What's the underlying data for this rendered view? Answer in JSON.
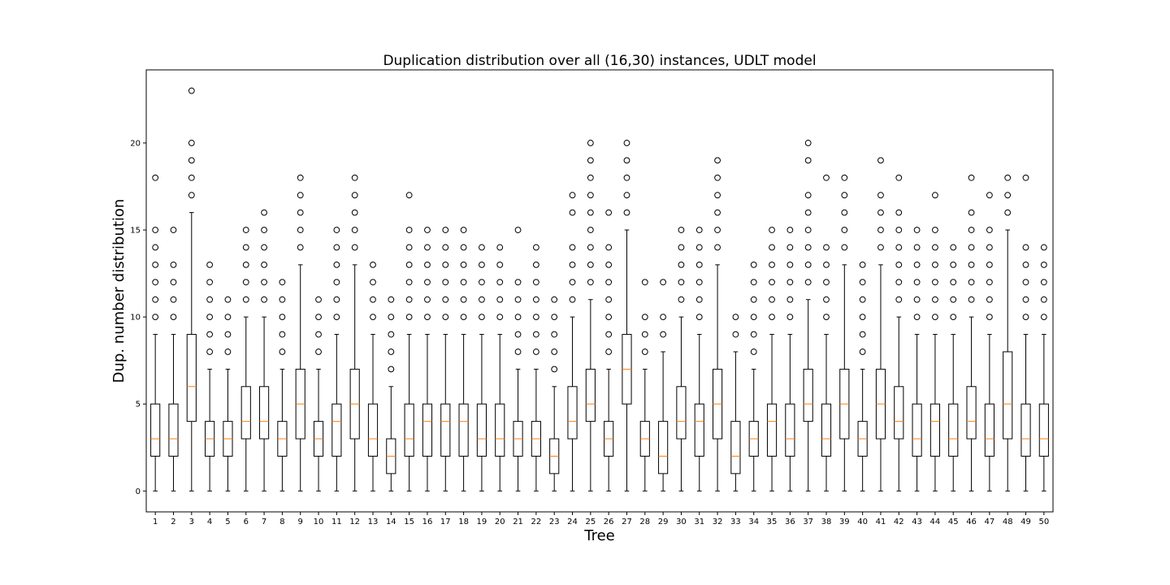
{
  "chart_data": {
    "type": "box",
    "title": "Duplication distribution over all (16,30) instances, UDLT model",
    "xlabel": "Tree",
    "ylabel": "Dup. number distribution",
    "ylim": [
      -1.2,
      24.2
    ],
    "yticks": [
      0,
      5,
      10,
      15,
      20
    ],
    "grid": false,
    "colors": {
      "box": "#000000",
      "median": "#ff7f0e",
      "flier": "#000000"
    },
    "categories": [
      "1",
      "2",
      "3",
      "4",
      "5",
      "6",
      "7",
      "8",
      "9",
      "10",
      "11",
      "12",
      "13",
      "14",
      "15",
      "16",
      "17",
      "18",
      "19",
      "20",
      "21",
      "22",
      "23",
      "24",
      "25",
      "26",
      "27",
      "28",
      "29",
      "30",
      "31",
      "32",
      "33",
      "34",
      "35",
      "36",
      "37",
      "38",
      "39",
      "40",
      "41",
      "42",
      "43",
      "44",
      "45",
      "46",
      "47",
      "48",
      "49",
      "50"
    ],
    "boxes": [
      {
        "whislo": 0,
        "q1": 2,
        "med": 3,
        "q3": 5,
        "whishi": 9,
        "fliers": [
          10,
          11,
          12,
          13,
          14,
          15,
          18
        ]
      },
      {
        "whislo": 0,
        "q1": 2,
        "med": 3,
        "q3": 5,
        "whishi": 9,
        "fliers": [
          10,
          11,
          12,
          13,
          15
        ]
      },
      {
        "whislo": 0,
        "q1": 4,
        "med": 6,
        "q3": 9,
        "whishi": 16,
        "fliers": [
          17,
          18,
          19,
          20,
          23
        ]
      },
      {
        "whislo": 0,
        "q1": 2,
        "med": 3,
        "q3": 4,
        "whishi": 7,
        "fliers": [
          8,
          9,
          10,
          11,
          12,
          13
        ]
      },
      {
        "whislo": 0,
        "q1": 2,
        "med": 3,
        "q3": 4,
        "whishi": 7,
        "fliers": [
          8,
          9,
          10,
          11
        ]
      },
      {
        "whislo": 0,
        "q1": 3,
        "med": 4,
        "q3": 6,
        "whishi": 10,
        "fliers": [
          11,
          12,
          13,
          14,
          15
        ]
      },
      {
        "whislo": 0,
        "q1": 3,
        "med": 4,
        "q3": 6,
        "whishi": 10,
        "fliers": [
          11,
          12,
          13,
          14,
          15,
          16
        ]
      },
      {
        "whislo": 0,
        "q1": 2,
        "med": 3,
        "q3": 4,
        "whishi": 7,
        "fliers": [
          8,
          9,
          10,
          11,
          12
        ]
      },
      {
        "whislo": 0,
        "q1": 3,
        "med": 5,
        "q3": 7,
        "whishi": 13,
        "fliers": [
          14,
          15,
          16,
          17,
          18
        ]
      },
      {
        "whislo": 0,
        "q1": 2,
        "med": 3,
        "q3": 4,
        "whishi": 7,
        "fliers": [
          8,
          9,
          10,
          11
        ]
      },
      {
        "whislo": 0,
        "q1": 2,
        "med": 4,
        "q3": 5,
        "whishi": 9,
        "fliers": [
          10,
          11,
          12,
          13,
          14,
          15
        ]
      },
      {
        "whislo": 0,
        "q1": 3,
        "med": 5,
        "q3": 7,
        "whishi": 13,
        "fliers": [
          14,
          15,
          16,
          17,
          18
        ]
      },
      {
        "whislo": 0,
        "q1": 2,
        "med": 3,
        "q3": 5,
        "whishi": 9,
        "fliers": [
          10,
          11,
          12,
          13
        ]
      },
      {
        "whislo": 0,
        "q1": 1,
        "med": 2,
        "q3": 3,
        "whishi": 6,
        "fliers": [
          7,
          8,
          9,
          10,
          11
        ]
      },
      {
        "whislo": 0,
        "q1": 2,
        "med": 3,
        "q3": 5,
        "whishi": 9,
        "fliers": [
          10,
          11,
          12,
          13,
          14,
          15,
          17
        ]
      },
      {
        "whislo": 0,
        "q1": 2,
        "med": 4,
        "q3": 5,
        "whishi": 9,
        "fliers": [
          10,
          11,
          12,
          13,
          14,
          15
        ]
      },
      {
        "whislo": 0,
        "q1": 2,
        "med": 4,
        "q3": 5,
        "whishi": 9,
        "fliers": [
          10,
          11,
          12,
          13,
          14,
          15
        ]
      },
      {
        "whislo": 0,
        "q1": 2,
        "med": 4,
        "q3": 5,
        "whishi": 9,
        "fliers": [
          10,
          11,
          12,
          13,
          14,
          15
        ]
      },
      {
        "whislo": 0,
        "q1": 2,
        "med": 3,
        "q3": 5,
        "whishi": 9,
        "fliers": [
          10,
          11,
          12,
          13,
          14
        ]
      },
      {
        "whislo": 0,
        "q1": 2,
        "med": 3,
        "q3": 5,
        "whishi": 9,
        "fliers": [
          10,
          11,
          12,
          13,
          14
        ]
      },
      {
        "whislo": 0,
        "q1": 2,
        "med": 3,
        "q3": 4,
        "whishi": 7,
        "fliers": [
          8,
          9,
          10,
          11,
          12,
          15
        ]
      },
      {
        "whislo": 0,
        "q1": 2,
        "med": 3,
        "q3": 4,
        "whishi": 7,
        "fliers": [
          8,
          9,
          10,
          11,
          12,
          13,
          14
        ]
      },
      {
        "whislo": 0,
        "q1": 1,
        "med": 2,
        "q3": 3,
        "whishi": 6,
        "fliers": [
          7,
          8,
          9,
          10,
          11
        ]
      },
      {
        "whislo": 0,
        "q1": 3,
        "med": 4,
        "q3": 6,
        "whishi": 10,
        "fliers": [
          11,
          12,
          13,
          14,
          16,
          17
        ]
      },
      {
        "whislo": 0,
        "q1": 4,
        "med": 5,
        "q3": 7,
        "whishi": 11,
        "fliers": [
          12,
          13,
          14,
          15,
          16,
          17,
          18,
          19,
          20
        ]
      },
      {
        "whislo": 0,
        "q1": 2,
        "med": 3,
        "q3": 4,
        "whishi": 7,
        "fliers": [
          8,
          9,
          10,
          11,
          12,
          13,
          14,
          16
        ]
      },
      {
        "whislo": 0,
        "q1": 5,
        "med": 7,
        "q3": 9,
        "whishi": 15,
        "fliers": [
          16,
          17,
          18,
          19,
          20
        ]
      },
      {
        "whislo": 0,
        "q1": 2,
        "med": 3,
        "q3": 4,
        "whishi": 7,
        "fliers": [
          8,
          9,
          10,
          12
        ]
      },
      {
        "whislo": 0,
        "q1": 1,
        "med": 2,
        "q3": 4,
        "whishi": 8,
        "fliers": [
          9,
          10,
          12
        ]
      },
      {
        "whislo": 0,
        "q1": 3,
        "med": 4,
        "q3": 6,
        "whishi": 10,
        "fliers": [
          11,
          12,
          13,
          14,
          15
        ]
      },
      {
        "whislo": 0,
        "q1": 2,
        "med": 4,
        "q3": 5,
        "whishi": 9,
        "fliers": [
          10,
          11,
          12,
          13,
          14,
          15
        ]
      },
      {
        "whislo": 0,
        "q1": 3,
        "med": 5,
        "q3": 7,
        "whishi": 13,
        "fliers": [
          14,
          15,
          16,
          17,
          18,
          19
        ]
      },
      {
        "whislo": 0,
        "q1": 1,
        "med": 2,
        "q3": 4,
        "whishi": 8,
        "fliers": [
          9,
          10
        ]
      },
      {
        "whislo": 0,
        "q1": 2,
        "med": 3,
        "q3": 4,
        "whishi": 7,
        "fliers": [
          8,
          9,
          10,
          11,
          12,
          13
        ]
      },
      {
        "whislo": 0,
        "q1": 2,
        "med": 4,
        "q3": 5,
        "whishi": 9,
        "fliers": [
          10,
          11,
          12,
          13,
          14,
          15
        ]
      },
      {
        "whislo": 0,
        "q1": 2,
        "med": 3,
        "q3": 5,
        "whishi": 9,
        "fliers": [
          10,
          11,
          12,
          13,
          14,
          15
        ]
      },
      {
        "whislo": 0,
        "q1": 4,
        "med": 5,
        "q3": 7,
        "whishi": 11,
        "fliers": [
          12,
          13,
          14,
          15,
          16,
          17,
          19,
          20
        ]
      },
      {
        "whislo": 0,
        "q1": 2,
        "med": 3,
        "q3": 5,
        "whishi": 9,
        "fliers": [
          10,
          11,
          12,
          13,
          14,
          18
        ]
      },
      {
        "whislo": 0,
        "q1": 3,
        "med": 5,
        "q3": 7,
        "whishi": 13,
        "fliers": [
          14,
          15,
          16,
          17,
          18
        ]
      },
      {
        "whislo": 0,
        "q1": 2,
        "med": 3,
        "q3": 4,
        "whishi": 7,
        "fliers": [
          8,
          9,
          10,
          11,
          12,
          13
        ]
      },
      {
        "whislo": 0,
        "q1": 3,
        "med": 5,
        "q3": 7,
        "whishi": 13,
        "fliers": [
          14,
          15,
          16,
          17,
          19
        ]
      },
      {
        "whislo": 0,
        "q1": 3,
        "med": 4,
        "q3": 6,
        "whishi": 10,
        "fliers": [
          11,
          12,
          13,
          14,
          15,
          16,
          18
        ]
      },
      {
        "whislo": 0,
        "q1": 2,
        "med": 3,
        "q3": 5,
        "whishi": 9,
        "fliers": [
          10,
          11,
          12,
          13,
          14,
          15
        ]
      },
      {
        "whislo": 0,
        "q1": 2,
        "med": 4,
        "q3": 5,
        "whishi": 9,
        "fliers": [
          10,
          11,
          12,
          13,
          14,
          15,
          17
        ]
      },
      {
        "whislo": 0,
        "q1": 2,
        "med": 3,
        "q3": 5,
        "whishi": 9,
        "fliers": [
          10,
          11,
          12,
          13,
          14
        ]
      },
      {
        "whislo": 0,
        "q1": 3,
        "med": 4,
        "q3": 6,
        "whishi": 10,
        "fliers": [
          11,
          12,
          13,
          14,
          15,
          16,
          18
        ]
      },
      {
        "whislo": 0,
        "q1": 2,
        "med": 3,
        "q3": 5,
        "whishi": 9,
        "fliers": [
          10,
          11,
          12,
          13,
          14,
          15,
          17
        ]
      },
      {
        "whislo": 0,
        "q1": 3,
        "med": 5,
        "q3": 8,
        "whishi": 15,
        "fliers": [
          16,
          17,
          18
        ]
      },
      {
        "whislo": 0,
        "q1": 2,
        "med": 3,
        "q3": 5,
        "whishi": 9,
        "fliers": [
          10,
          11,
          12,
          13,
          14,
          18
        ]
      },
      {
        "whislo": 0,
        "q1": 2,
        "med": 3,
        "q3": 5,
        "whishi": 9,
        "fliers": [
          10,
          11,
          12,
          13,
          14
        ]
      }
    ]
  }
}
